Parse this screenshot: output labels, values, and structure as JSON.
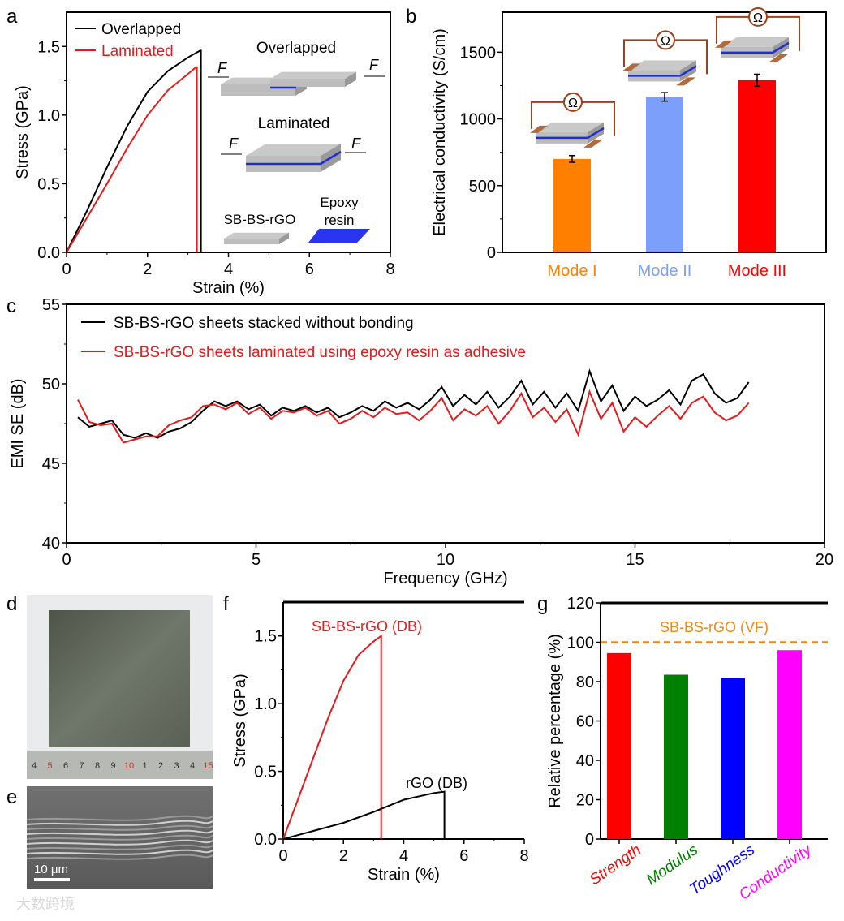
{
  "colors": {
    "black": "#000000",
    "red": "#e41a1c",
    "orange": "#ff7f00",
    "lightblue": "#7b9ffa",
    "brightred": "#ff0000",
    "green": "#008000",
    "blue": "#0000ff",
    "magenta": "#ff00ff",
    "dashed": "#e8891c",
    "epoxy": "#2a35f0",
    "sheet": "#c8c8c8",
    "electrode": "#a0522d",
    "circuit": "#a0401a"
  },
  "watermark": "大数跨境",
  "chart_data": [
    {
      "panel": "a",
      "type": "line",
      "xlabel": "Strain (%)",
      "ylabel": "Stress (GPa)",
      "xlim": [
        0,
        8
      ],
      "ylim": [
        0,
        1.75
      ],
      "xticks": [
        "0",
        "2",
        "4",
        "6",
        "8"
      ],
      "yticks": [
        "0.0",
        "0.5",
        "1.0",
        "1.5"
      ],
      "legend_position": "top-left",
      "series": [
        {
          "name": "Overlapped",
          "color": "#000000",
          "x": [
            0,
            0.5,
            1,
            1.5,
            2,
            2.5,
            3,
            3.3,
            3.32,
            3.32
          ],
          "y": [
            0,
            0.3,
            0.62,
            0.92,
            1.17,
            1.32,
            1.42,
            1.47,
            1.47,
            0
          ]
        },
        {
          "name": "Laminated",
          "color": "#e41a1c",
          "x": [
            0,
            0.5,
            1,
            1.5,
            2,
            2.5,
            3,
            3.2,
            3.22,
            3.22
          ],
          "y": [
            0,
            0.25,
            0.5,
            0.76,
            1.0,
            1.18,
            1.3,
            1.35,
            1.35,
            0
          ]
        }
      ],
      "inset": {
        "overlapped": "Overlapped",
        "laminated": "Laminated",
        "force": "F",
        "sheet": "SB-BS-rGO",
        "epoxy_line1": "Epoxy",
        "epoxy_line2": "resin"
      }
    },
    {
      "panel": "b",
      "type": "bar",
      "ylabel": "Electrical conductivity (S/cm)",
      "ylim": [
        0,
        1800
      ],
      "yticks": [
        "0",
        "500",
        "1000",
        "1500"
      ],
      "categories": [
        "Mode I",
        "Mode II",
        "Mode III"
      ],
      "values": [
        700,
        1165,
        1290
      ],
      "errors": [
        25,
        32,
        45
      ],
      "bar_colors": [
        "#ff7f00",
        "#7b9ffa",
        "#ff0000"
      ],
      "inset_symbol": "Ω"
    },
    {
      "panel": "c",
      "type": "line",
      "xlabel": "Frequency (GHz)",
      "ylabel": "EMI SE (dB)",
      "xlim": [
        0,
        20
      ],
      "ylim": [
        40,
        55
      ],
      "xticks": [
        "0",
        "5",
        "10",
        "15",
        "20"
      ],
      "yticks": [
        "40",
        "45",
        "50",
        "55"
      ],
      "x_start": 0.3,
      "x_step": 0.3,
      "legend_position": "top-left",
      "series": [
        {
          "name": "SB-BS-rGO sheets stacked without bonding",
          "color": "#000000",
          "y": [
            47.9,
            47.3,
            47.5,
            47.7,
            46.8,
            46.6,
            46.9,
            46.6,
            47.0,
            47.2,
            47.6,
            48.3,
            48.9,
            48.6,
            48.9,
            48.4,
            48.7,
            48.0,
            48.5,
            48.3,
            48.6,
            48.2,
            48.5,
            47.9,
            48.2,
            48.6,
            48.3,
            48.9,
            48.5,
            48.8,
            48.4,
            49.0,
            49.8,
            48.6,
            49.3,
            48.7,
            49.5,
            48.5,
            49.2,
            50.2,
            48.7,
            49.5,
            48.5,
            49.4,
            48.3,
            50.8,
            48.9,
            49.9,
            48.3,
            49.2,
            48.6,
            49.0,
            49.6,
            48.7,
            50.2,
            50.6,
            49.4,
            48.8,
            49.1,
            50.1
          ]
        },
        {
          "name": "SB-BS-rGO sheets laminated using epoxy resin as adhesive",
          "color": "#e41a1c",
          "y": [
            49.0,
            47.6,
            47.4,
            47.5,
            46.3,
            46.5,
            46.7,
            46.7,
            47.4,
            47.7,
            47.9,
            48.6,
            48.7,
            48.4,
            48.8,
            48.1,
            48.5,
            47.8,
            48.3,
            48.2,
            48.5,
            48.0,
            48.3,
            47.5,
            47.8,
            48.3,
            47.9,
            48.5,
            48.1,
            48.2,
            47.7,
            48.3,
            49.1,
            47.7,
            48.4,
            48.0,
            48.6,
            47.5,
            48.3,
            49.4,
            47.9,
            48.5,
            47.6,
            48.4,
            46.8,
            49.5,
            47.8,
            48.8,
            47.0,
            47.9,
            47.3,
            48.0,
            48.6,
            47.8,
            48.8,
            49.2,
            48.2,
            47.7,
            48.0,
            48.8
          ]
        }
      ]
    },
    {
      "panel": "f",
      "type": "line",
      "xlabel": "Strain (%)",
      "ylabel": "Stress (GPa)",
      "xlim": [
        0,
        8
      ],
      "ylim": [
        0,
        1.75
      ],
      "xticks": [
        "0",
        "2",
        "4",
        "6",
        "8"
      ],
      "yticks": [
        "0.0",
        "0.5",
        "1.0",
        "1.5"
      ],
      "series": [
        {
          "name": "SB-BS-rGO (DB)",
          "color": "#e41a1c",
          "x": [
            0,
            0.5,
            1,
            1.5,
            2,
            2.5,
            3,
            3.25,
            3.25
          ],
          "y": [
            0,
            0.3,
            0.6,
            0.9,
            1.17,
            1.36,
            1.46,
            1.5,
            0
          ]
        },
        {
          "name": "rGO (DB)",
          "color": "#000000",
          "x": [
            0,
            1,
            2,
            3,
            4,
            5,
            5.35,
            5.35
          ],
          "y": [
            0,
            0.06,
            0.12,
            0.2,
            0.29,
            0.34,
            0.35,
            0
          ]
        }
      ]
    },
    {
      "panel": "g",
      "type": "bar",
      "ylabel": "Relative percentage (%)",
      "ylim": [
        0,
        120
      ],
      "yticks": [
        "0",
        "20",
        "40",
        "60",
        "80",
        "100",
        "120"
      ],
      "categories": [
        "Strength",
        "Modulus",
        "Toughness",
        "Conductivity"
      ],
      "values": [
        94.5,
        83.5,
        81.8,
        96
      ],
      "bar_colors": [
        "#ff0000",
        "#008000",
        "#0000ff",
        "#ff00ff"
      ],
      "reference": {
        "label": "SB-BS-rGO (VF)",
        "value": 100
      }
    }
  ],
  "panels": {
    "labels": [
      "a",
      "b",
      "c",
      "d",
      "e",
      "f",
      "g"
    ],
    "d": {
      "ruler_numbers": [
        "4",
        "5",
        "6",
        "7",
        "8",
        "9",
        "10",
        "1",
        "2",
        "3",
        "4",
        "15"
      ]
    },
    "e": {
      "scale_bar": "10 μm"
    }
  }
}
